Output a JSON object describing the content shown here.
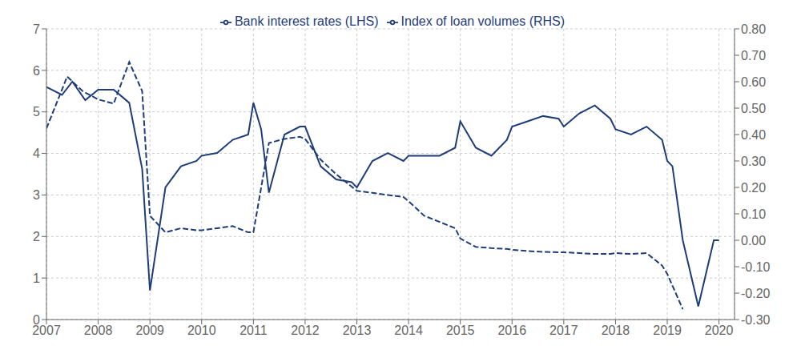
{
  "chart_data": {
    "type": "line",
    "series": [
      {
        "name": "Bank interest rates (LHS)",
        "color": "#1f3d7a",
        "line_style": "dashed",
        "x": [
          2007.0,
          2007.4,
          2007.7,
          2008.0,
          2008.3,
          2008.6,
          2008.85,
          2009.0,
          2009.3,
          2009.6,
          2009.9,
          2010.0,
          2010.3,
          2010.6,
          2010.9,
          2011.0,
          2011.3,
          2011.6,
          2011.9,
          2012.0,
          2012.3,
          2012.6,
          2012.9,
          2013.0,
          2013.3,
          2013.6,
          2013.9,
          2014.0,
          2014.3,
          2014.6,
          2014.9,
          2015.0,
          2015.3,
          2015.6,
          2015.9,
          2016.0,
          2016.3,
          2016.6,
          2016.9,
          2017.0,
          2017.3,
          2017.6,
          2017.9,
          2018.0,
          2018.3,
          2018.6,
          2018.9,
          2019.0,
          2019.3
        ],
        "values": [
          4.6,
          5.85,
          5.5,
          5.3,
          5.2,
          6.2,
          5.5,
          2.5,
          2.1,
          2.2,
          2.15,
          2.15,
          2.2,
          2.25,
          2.1,
          2.1,
          4.25,
          4.35,
          4.4,
          4.35,
          3.85,
          3.5,
          3.2,
          3.1,
          3.05,
          3.0,
          2.95,
          2.85,
          2.5,
          2.35,
          2.2,
          1.95,
          1.75,
          1.72,
          1.7,
          1.68,
          1.65,
          1.63,
          1.62,
          1.62,
          1.6,
          1.58,
          1.58,
          1.6,
          1.58,
          1.6,
          1.3,
          1.1,
          0.25
        ]
      },
      {
        "name": "Index of loan volumes (RHS)",
        "color": "#1f3d7a",
        "line_style": "solid",
        "axis": "y2",
        "x": [
          2007.0,
          2007.3,
          2007.5,
          2007.75,
          2008.0,
          2008.3,
          2008.6,
          2008.85,
          2009.0,
          2009.3,
          2009.6,
          2009.9,
          2010.0,
          2010.3,
          2010.6,
          2010.9,
          2011.0,
          2011.15,
          2011.3,
          2011.6,
          2011.9,
          2012.0,
          2012.3,
          2012.6,
          2012.9,
          2013.0,
          2013.3,
          2013.6,
          2013.9,
          2014.0,
          2014.3,
          2014.6,
          2014.9,
          2015.0,
          2015.3,
          2015.6,
          2015.9,
          2016.0,
          2016.3,
          2016.6,
          2016.9,
          2017.0,
          2017.3,
          2017.6,
          2017.9,
          2018.0,
          2018.3,
          2018.6,
          2018.9,
          2019.0,
          2019.1,
          2019.3,
          2019.6,
          2019.9,
          2020.0
        ],
        "values": [
          0.58,
          0.55,
          0.6,
          0.53,
          0.57,
          0.57,
          0.52,
          0.27,
          -0.19,
          0.2,
          0.28,
          0.3,
          0.32,
          0.33,
          0.38,
          0.4,
          0.52,
          0.42,
          0.18,
          0.4,
          0.43,
          0.43,
          0.28,
          0.23,
          0.22,
          0.2,
          0.3,
          0.33,
          0.3,
          0.32,
          0.32,
          0.32,
          0.35,
          0.45,
          0.35,
          0.32,
          0.38,
          0.43,
          0.45,
          0.47,
          0.46,
          0.43,
          0.48,
          0.51,
          0.46,
          0.42,
          0.4,
          0.43,
          0.38,
          0.3,
          0.28,
          0.0,
          -0.25,
          0.0,
          0.0
        ]
      }
    ],
    "xlim": [
      2007,
      2020.3
    ],
    "xticks": [
      2007,
      2008,
      2009,
      2010,
      2011,
      2012,
      2013,
      2014,
      2015,
      2016,
      2017,
      2018,
      2019,
      2020
    ],
    "ylim": [
      0,
      7
    ],
    "yticks": [
      0,
      1,
      2,
      3,
      4,
      5,
      6,
      7
    ],
    "y2lim": [
      -0.3,
      0.8
    ],
    "y2ticks": [
      {
        "value": -0.3,
        "label": "-0.30"
      },
      {
        "value": -0.2,
        "label": "-0.20"
      },
      {
        "value": -0.1,
        "label": "-0.10"
      },
      {
        "value": 0.0,
        "label": "0.00"
      },
      {
        "value": 0.1,
        "label": "0.10"
      },
      {
        "value": 0.2,
        "label": "0.20"
      },
      {
        "value": 0.3,
        "label": "0.30"
      },
      {
        "value": 0.4,
        "label": "0.40"
      },
      {
        "value": 0.5,
        "label": "0.50"
      },
      {
        "value": 0.6,
        "label": "0.60"
      },
      {
        "value": 0.7,
        "label": "0.70"
      },
      {
        "value": 0.8,
        "label": "0.80"
      }
    ],
    "grid": true,
    "legend": "top"
  }
}
